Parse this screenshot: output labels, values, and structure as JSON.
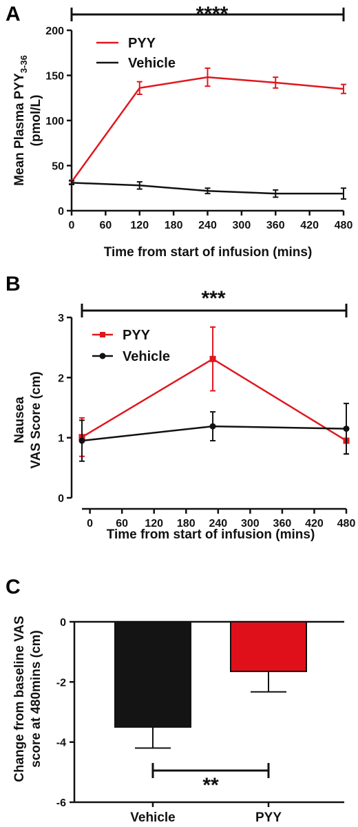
{
  "chart_data": [
    {
      "panel": "A",
      "type": "line",
      "x": [
        0,
        120,
        240,
        360,
        480
      ],
      "xlim": [
        0,
        480
      ],
      "ylim": [
        0,
        200
      ],
      "xticks": [
        "0",
        "60",
        "120",
        "180",
        "240",
        "300",
        "360",
        "420",
        "480"
      ],
      "yticks": [
        "0",
        "50",
        "100",
        "150",
        "200"
      ],
      "xlabel": "Time from start of infusion (mins)",
      "ylabel_line1": "Mean Plasma PYY",
      "ylabel_sub": "3-36",
      "ylabel_line2": "(pmol/L)",
      "significance": "****",
      "legend_position": "top-left",
      "grid": false,
      "series": [
        {
          "name": "PYY",
          "color": "#e0161d",
          "marker": "none",
          "values": [
            32,
            136,
            148,
            142,
            135
          ],
          "errors": [
            2,
            7,
            10,
            6,
            5
          ]
        },
        {
          "name": "Vehicle",
          "color": "#111111",
          "marker": "none",
          "values": [
            31,
            28,
            22,
            19,
            19
          ],
          "errors": [
            2,
            4,
            3,
            4,
            6
          ]
        }
      ]
    },
    {
      "panel": "B",
      "type": "line",
      "x": [
        -15,
        230,
        480
      ],
      "xlim": [
        -15,
        480
      ],
      "ylim": [
        0,
        3
      ],
      "xticks": [
        "0",
        "60",
        "120",
        "180",
        "240",
        "300",
        "360",
        "420",
        "480"
      ],
      "yticks": [
        "0",
        "1",
        "2",
        "3"
      ],
      "xlabel": "Time from start of infusion (mins)",
      "ylabel_line1": "Nausea",
      "ylabel_line2": "VAS Score (cm)",
      "significance": "***",
      "legend_position": "top-left",
      "grid": false,
      "series": [
        {
          "name": "PYY",
          "color": "#e0161d",
          "marker": "square",
          "values": [
            1.01,
            2.31,
            0.95
          ],
          "errors": [
            0.32,
            0.53,
            0.22
          ]
        },
        {
          "name": "Vehicle",
          "color": "#111111",
          "marker": "circle",
          "values": [
            0.95,
            1.19,
            1.15
          ],
          "errors": [
            0.34,
            0.24,
            0.42
          ]
        }
      ]
    },
    {
      "panel": "C",
      "type": "bar",
      "categories": [
        "Vehicle",
        "PYY"
      ],
      "values": [
        -3.5,
        -1.65
      ],
      "errors": [
        0.7,
        0.68
      ],
      "colors": [
        "#141414",
        "#e0101a"
      ],
      "ylim": [
        -6,
        0
      ],
      "yticks": [
        "0",
        "-2",
        "-4",
        "-6"
      ],
      "ylabel_line1": "Change from baseline VAS",
      "ylabel_line2": "score at 480mins (cm)",
      "significance": "**",
      "grid": false
    }
  ]
}
